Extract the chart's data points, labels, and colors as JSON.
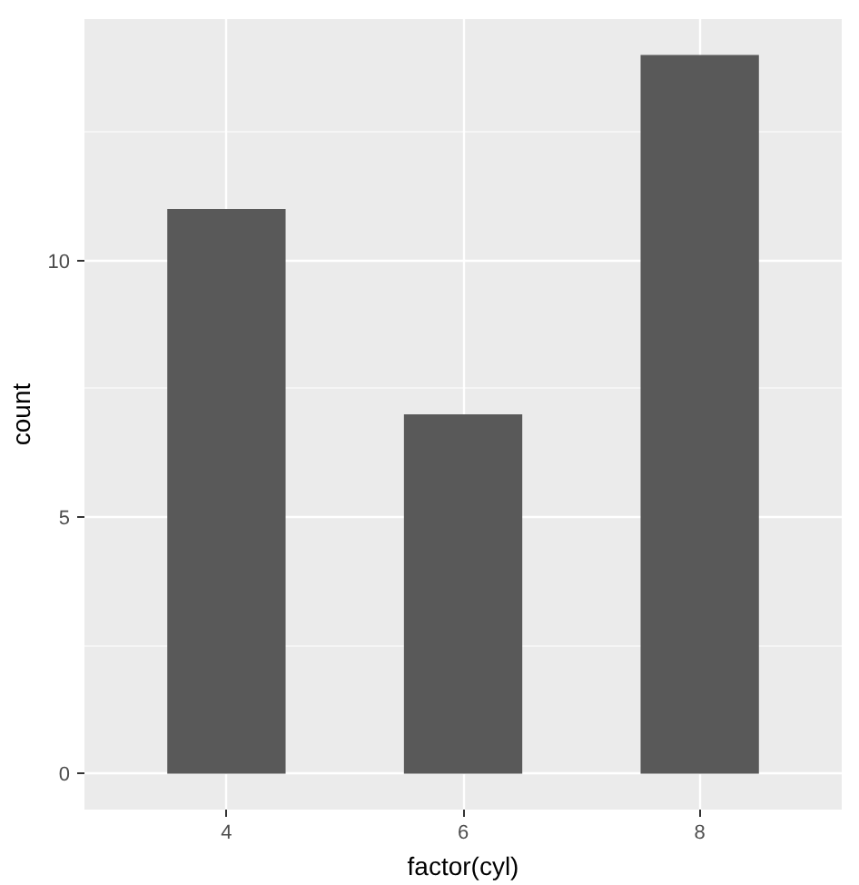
{
  "chart_data": {
    "type": "bar",
    "xlabel": "factor(cyl)",
    "ylabel": "count",
    "categories": [
      "4",
      "6",
      "8"
    ],
    "values": [
      11,
      7,
      14
    ],
    "color": "#595959",
    "ylim": [
      -0.7,
      14.7
    ],
    "yticks": [
      0,
      5,
      10
    ],
    "grid": true
  }
}
